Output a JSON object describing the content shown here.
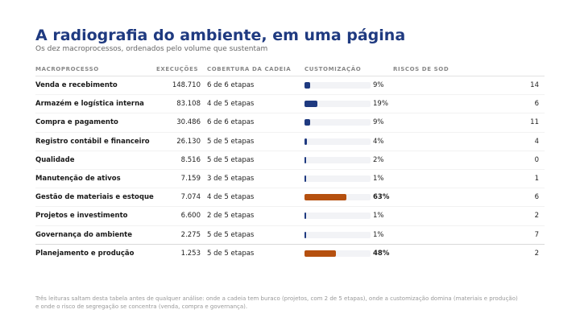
{
  "title": "A radiografia do ambiente, em uma página",
  "subtitle": "Os dez macroprocessos, ordenados pelo volume que sustentam",
  "table": {
    "headers": {
      "macroprocesso": "MACROPROCESSO",
      "execucoes": "EXECUÇÕES",
      "cobertura": "COBERTURA DA CADEIA",
      "customizacao": "CUSTOMIZAÇÃO",
      "riscos": "RISCOS DE SOD"
    },
    "rows": [
      {
        "name": "Venda e recebimento",
        "execucoes": "148.710",
        "cobertura": "6 de 6 etapas",
        "customizacao_pct": 9,
        "customizacao_label": "9%",
        "riscos": "14",
        "highlight": false
      },
      {
        "name": "Armazém e logística interna",
        "execucoes": "83.108",
        "cobertura": "4 de 5 etapas",
        "customizacao_pct": 19,
        "customizacao_label": "19%",
        "riscos": "6",
        "highlight": false
      },
      {
        "name": "Compra e pagamento",
        "execucoes": "30.486",
        "cobertura": "6 de 6 etapas",
        "customizacao_pct": 9,
        "customizacao_label": "9%",
        "riscos": "11",
        "highlight": false
      },
      {
        "name": "Registro contábil e financeiro",
        "execucoes": "26.130",
        "cobertura": "5 de 5 etapas",
        "customizacao_pct": 4,
        "customizacao_label": "4%",
        "riscos": "4",
        "highlight": false
      },
      {
        "name": "Qualidade",
        "execucoes": "8.516",
        "cobertura": "5 de 5 etapas",
        "customizacao_pct": 2,
        "customizacao_label": "2%",
        "riscos": "0",
        "highlight": false
      },
      {
        "name": "Manutenção de ativos",
        "execucoes": "7.159",
        "cobertura": "3 de 5 etapas",
        "customizacao_pct": 1,
        "customizacao_label": "1%",
        "riscos": "1",
        "highlight": false
      },
      {
        "name": "Gestão de materiais e estoque",
        "execucoes": "7.074",
        "cobertura": "4 de 5 etapas",
        "customizacao_pct": 63,
        "customizacao_label": "63%",
        "riscos": "6",
        "highlight": true
      },
      {
        "name": "Projetos e investimento",
        "execucoes": "6.600",
        "cobertura": "2 de 5 etapas",
        "customizacao_pct": 1,
        "customizacao_label": "1%",
        "riscos": "2",
        "highlight": false
      },
      {
        "name": "Governança do ambiente",
        "execucoes": "2.275",
        "cobertura": "5 de 5 etapas",
        "customizacao_pct": 1,
        "customizacao_label": "1%",
        "riscos": "7",
        "highlight": false
      },
      {
        "name": "Planejamento e produção",
        "execucoes": "1.253",
        "cobertura": "5 de 5 etapas",
        "customizacao_pct": 48,
        "customizacao_label": "48%",
        "riscos": "2",
        "highlight": true
      }
    ]
  },
  "colors": {
    "accent": "#1f3a80",
    "highlight": "#b5500f"
  },
  "footnote": "Três leituras saltam desta tabela antes de qualquer análise: onde a cadeia tem buraco (projetos, com 2 de 5 etapas), onde a customização domina (materiais e produção) e onde o risco de segregação se concentra (venda, compra e governança)."
}
